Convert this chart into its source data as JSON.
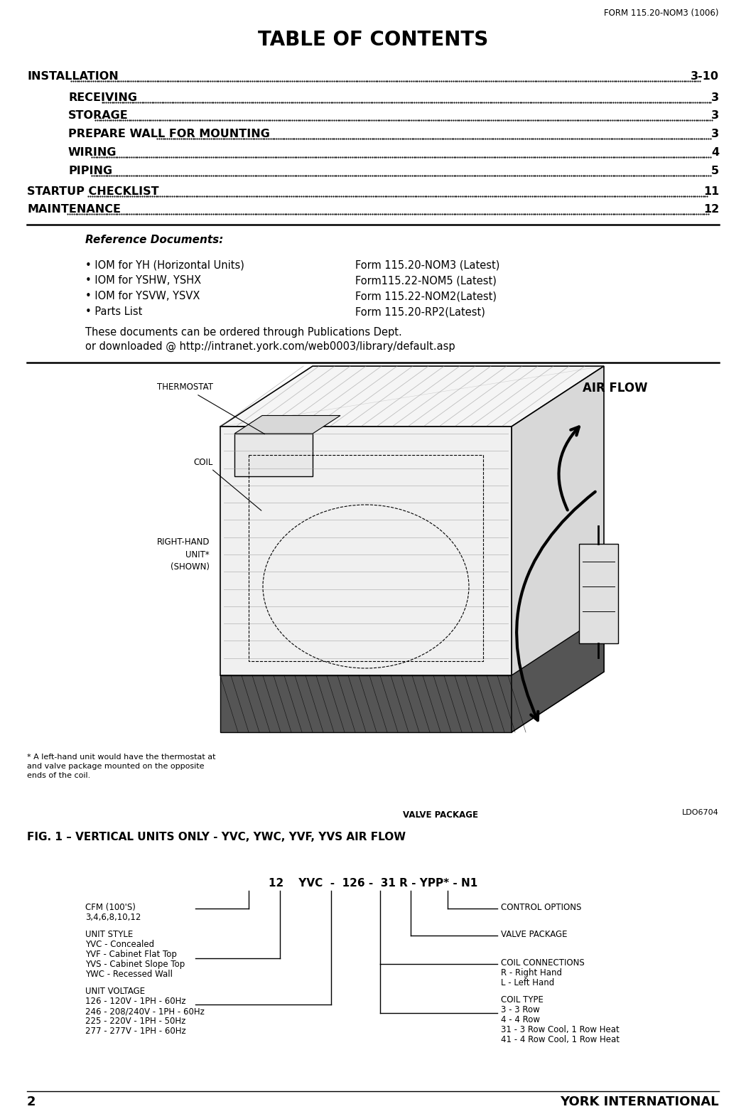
{
  "form_number": "FORM 115.20-NOM3 (1006)",
  "title": "TABLE OF CONTENTS",
  "toc_entries": [
    {
      "text": "INSTALLATION",
      "page": "3-10",
      "indent": 0
    },
    {
      "text": "RECEIVING",
      "page": "3",
      "indent": 1
    },
    {
      "text": "STORAGE",
      "page": "3",
      "indent": 1
    },
    {
      "text": "PREPARE WALL FOR MOUNTING",
      "page": "3",
      "indent": 1
    },
    {
      "text": "WIRING",
      "page": "4",
      "indent": 1
    },
    {
      "text": "PIPING",
      "page": "5",
      "indent": 1
    },
    {
      "text": "STARTUP CHECKLIST",
      "page": "11",
      "indent": 0
    },
    {
      "text": "MAINTENANCE",
      "page": "12",
      "indent": 0
    }
  ],
  "ref_title": "Reference Documents:",
  "ref_entries": [
    {
      "bullet": "• IOM for YH (Horizontal Units)",
      "form": "Form 115.20-NOM3 (Latest)"
    },
    {
      "bullet": "• IOM for YSHW, YSHX",
      "form": "Form115.22-NOM5 (Latest)"
    },
    {
      "bullet": "• IOM for YSVW, YSVX",
      "form": "Form 115.22-NOM2(Latest)"
    },
    {
      "bullet": "• Parts List",
      "form": "Form 115.20-RP2(Latest)"
    }
  ],
  "ref_note1": "These documents can be ordered through Publications Dept.",
  "ref_note2": "or downloaded @ http://intranet.york.com/web0003/library/default.asp",
  "fig_caption": "FIG. 1 – VERTICAL UNITS ONLY - YVC, YWC, YVF, YVS AIR FLOW",
  "page_number": "2",
  "footer_text": "YORK INTERNATIONAL",
  "bg_color": "#ffffff",
  "text_color": "#000000"
}
